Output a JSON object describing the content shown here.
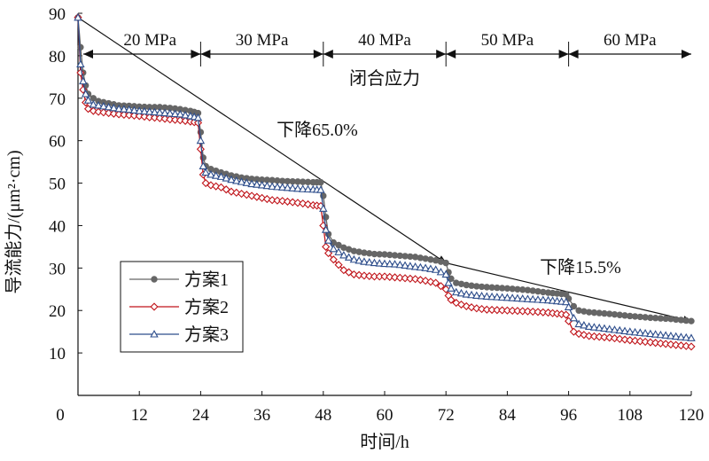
{
  "chart_data": {
    "type": "line",
    "xlabel": "时间/h",
    "ylabel": "导流能力/(μm²·cm)",
    "xlim": [
      0,
      120
    ],
    "ylim": [
      0,
      90
    ],
    "x_ticks": [
      "0",
      "12",
      "24",
      "36",
      "48",
      "60",
      "72",
      "84",
      "96",
      "108",
      "120"
    ],
    "y_ticks": [
      "10",
      "20",
      "30",
      "40",
      "50",
      "60",
      "70",
      "80",
      "90"
    ],
    "grid": false,
    "legend_position": "lower-left",
    "stress_label": "闭合应力",
    "stages": [
      {
        "label": "20 MPa",
        "from": 0,
        "to": 24
      },
      {
        "label": "30 MPa",
        "from": 24,
        "to": 48
      },
      {
        "label": "40 MPa",
        "from": 48,
        "to": 72
      },
      {
        "label": "50 MPa",
        "from": 72,
        "to": 96
      },
      {
        "label": "60 MPa",
        "from": 96,
        "to": 120
      }
    ],
    "annotations": [
      {
        "text": "下降65.0%",
        "from": [
          0,
          89
        ],
        "to": [
          72,
          31.2
        ]
      },
      {
        "text": "下降15.5%",
        "from": [
          72,
          31.2
        ],
        "to": [
          120,
          17.5
        ]
      }
    ],
    "series": [
      {
        "name": "方案1",
        "color": "#666666",
        "marker": "circle",
        "points": [
          [
            0,
            89
          ],
          [
            0.5,
            82
          ],
          [
            1,
            76
          ],
          [
            1.5,
            73
          ],
          [
            2,
            71
          ],
          [
            3,
            70
          ],
          [
            4,
            69.3
          ],
          [
            6,
            68.8
          ],
          [
            8,
            68.3
          ],
          [
            10,
            68.2
          ],
          [
            12,
            68
          ],
          [
            14,
            67.9
          ],
          [
            16,
            67.9
          ],
          [
            18,
            67.7
          ],
          [
            20,
            67.4
          ],
          [
            22,
            67
          ],
          [
            23.5,
            66.5
          ],
          [
            24,
            62
          ],
          [
            24.5,
            56
          ],
          [
            25,
            54
          ],
          [
            26,
            53.3
          ],
          [
            28,
            52.5
          ],
          [
            30,
            51.8
          ],
          [
            32,
            51.3
          ],
          [
            34,
            51
          ],
          [
            36,
            50.8
          ],
          [
            38,
            50.7
          ],
          [
            40,
            50.5
          ],
          [
            42,
            50.4
          ],
          [
            44,
            50.3
          ],
          [
            46,
            50.2
          ],
          [
            47.5,
            50.2
          ],
          [
            48,
            47
          ],
          [
            48.5,
            42
          ],
          [
            49,
            38
          ],
          [
            50,
            36
          ],
          [
            52,
            34.8
          ],
          [
            54,
            34
          ],
          [
            56,
            33.6
          ],
          [
            58,
            33.3
          ],
          [
            60,
            33.2
          ],
          [
            62,
            33
          ],
          [
            64,
            32.8
          ],
          [
            66,
            32.6
          ],
          [
            68,
            32.2
          ],
          [
            70,
            31.8
          ],
          [
            72,
            31.2
          ],
          [
            72.5,
            29
          ],
          [
            73,
            27.5
          ],
          [
            74,
            26.5
          ],
          [
            76,
            26
          ],
          [
            78,
            25.7
          ],
          [
            80,
            25.5
          ],
          [
            84,
            25.2
          ],
          [
            88,
            24.8
          ],
          [
            92,
            24.2
          ],
          [
            95.5,
            23.8
          ],
          [
            96,
            22.8
          ],
          [
            97,
            21
          ],
          [
            98,
            20
          ],
          [
            100,
            19.6
          ],
          [
            104,
            19.2
          ],
          [
            108,
            18.7
          ],
          [
            112,
            18.3
          ],
          [
            116,
            18
          ],
          [
            120,
            17.5
          ]
        ]
      },
      {
        "name": "方案2",
        "color": "#c0151b",
        "marker": "diamond",
        "points": [
          [
            0,
            89
          ],
          [
            0.5,
            76
          ],
          [
            1,
            72
          ],
          [
            1.5,
            69
          ],
          [
            2,
            67.5
          ],
          [
            3,
            67
          ],
          [
            4,
            66.8
          ],
          [
            6,
            66.5
          ],
          [
            8,
            66.2
          ],
          [
            10,
            66
          ],
          [
            12,
            65.8
          ],
          [
            14,
            65.5
          ],
          [
            16,
            65.3
          ],
          [
            18,
            65
          ],
          [
            20,
            64.8
          ],
          [
            22,
            64.5
          ],
          [
            23.5,
            64.2
          ],
          [
            24,
            58
          ],
          [
            24.5,
            52
          ],
          [
            25,
            50
          ],
          [
            26,
            49.5
          ],
          [
            28,
            49
          ],
          [
            30,
            48
          ],
          [
            32,
            47.5
          ],
          [
            34,
            47
          ],
          [
            36,
            46.5
          ],
          [
            38,
            46
          ],
          [
            40,
            45.8
          ],
          [
            42,
            45.5
          ],
          [
            44,
            45.2
          ],
          [
            46,
            44.8
          ],
          [
            47.5,
            44.6
          ],
          [
            48,
            40
          ],
          [
            48.5,
            35
          ],
          [
            49,
            33.5
          ],
          [
            50,
            32
          ],
          [
            52,
            29.5
          ],
          [
            54,
            28.5
          ],
          [
            56,
            28.2
          ],
          [
            58,
            28
          ],
          [
            60,
            28
          ],
          [
            62,
            27.8
          ],
          [
            64,
            27.6
          ],
          [
            66,
            27.4
          ],
          [
            68,
            27
          ],
          [
            70,
            26.5
          ],
          [
            72,
            25
          ],
          [
            72.5,
            23.5
          ],
          [
            73,
            22.5
          ],
          [
            74,
            21.8
          ],
          [
            76,
            21
          ],
          [
            78,
            20.5
          ],
          [
            80,
            20.2
          ],
          [
            84,
            20
          ],
          [
            88,
            19.8
          ],
          [
            92,
            19.5
          ],
          [
            95.5,
            19
          ],
          [
            96,
            17.5
          ],
          [
            97,
            15
          ],
          [
            98,
            14.5
          ],
          [
            100,
            14
          ],
          [
            104,
            13.6
          ],
          [
            108,
            13
          ],
          [
            112,
            12.5
          ],
          [
            116,
            12
          ],
          [
            120,
            11.5
          ]
        ]
      },
      {
        "name": "方案3",
        "color": "#2e4e8c",
        "marker": "triangle",
        "points": [
          [
            0,
            89
          ],
          [
            0.5,
            78
          ],
          [
            1,
            74
          ],
          [
            1.5,
            71
          ],
          [
            2,
            69.5
          ],
          [
            3,
            68.5
          ],
          [
            4,
            68.3
          ],
          [
            6,
            67.9
          ],
          [
            8,
            67.5
          ],
          [
            10,
            67.3
          ],
          [
            12,
            67
          ],
          [
            14,
            66.8
          ],
          [
            16,
            66.6
          ],
          [
            18,
            66.4
          ],
          [
            20,
            66.2
          ],
          [
            22,
            65.8
          ],
          [
            23.5,
            65.4
          ],
          [
            24,
            60
          ],
          [
            24.5,
            54
          ],
          [
            25,
            52.5
          ],
          [
            26,
            52
          ],
          [
            28,
            51.5
          ],
          [
            30,
            50.8
          ],
          [
            32,
            50.3
          ],
          [
            34,
            49.8
          ],
          [
            36,
            49.5
          ],
          [
            38,
            49.2
          ],
          [
            40,
            49
          ],
          [
            42,
            48.8
          ],
          [
            44,
            48.6
          ],
          [
            46,
            48.5
          ],
          [
            47.5,
            48.4
          ],
          [
            48,
            44
          ],
          [
            48.5,
            39
          ],
          [
            49,
            36.5
          ],
          [
            50,
            34.5
          ],
          [
            52,
            33
          ],
          [
            54,
            32
          ],
          [
            56,
            31.5
          ],
          [
            58,
            31.2
          ],
          [
            60,
            31
          ],
          [
            62,
            30.9
          ],
          [
            64,
            30.6
          ],
          [
            66,
            30.3
          ],
          [
            68,
            30
          ],
          [
            70,
            29.6
          ],
          [
            72,
            28.5
          ],
          [
            72.5,
            26.5
          ],
          [
            73,
            25.2
          ],
          [
            74,
            24.3
          ],
          [
            76,
            23.8
          ],
          [
            78,
            23.5
          ],
          [
            80,
            23.3
          ],
          [
            84,
            23
          ],
          [
            88,
            22.7
          ],
          [
            92,
            22.4
          ],
          [
            95.5,
            22
          ],
          [
            96,
            20.8
          ],
          [
            97,
            18.2
          ],
          [
            98,
            16.8
          ],
          [
            100,
            16.2
          ],
          [
            104,
            15.6
          ],
          [
            108,
            15
          ],
          [
            112,
            14.5
          ],
          [
            116,
            14
          ],
          [
            120,
            13.5
          ]
        ]
      }
    ]
  }
}
